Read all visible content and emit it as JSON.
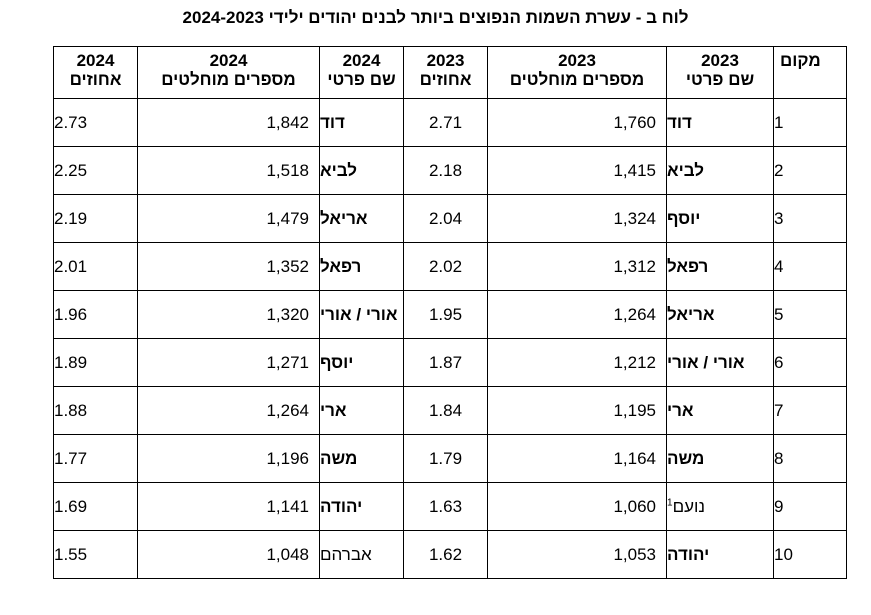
{
  "title": "לוח ב - עשרת השמות הנפוצים ביותר לבנים יהודים ילידי 2024-2023",
  "headers": {
    "rank": "מקום",
    "y2023": "2023",
    "y2024": "2024",
    "name": "שם פרטי",
    "absolute": "מספרים מוחלטים",
    "percent": "אחוזים"
  },
  "rows": [
    {
      "rank": "1",
      "name23": "דוד",
      "abs23": "1,760",
      "pct23": "2.71",
      "name24": "דוד",
      "abs24": "1,842",
      "pct24": "2.73"
    },
    {
      "rank": "2",
      "name23": "לביא",
      "abs23": "1,415",
      "pct23": "2.18",
      "name24": "לביא",
      "abs24": "1,518",
      "pct24": "2.25"
    },
    {
      "rank": "3",
      "name23": "יוסף",
      "abs23": "1,324",
      "pct23": "2.04",
      "name24": "אריאל",
      "abs24": "1,479",
      "pct24": "2.19"
    },
    {
      "rank": "4",
      "name23": "רפאל",
      "abs23": "1,312",
      "pct23": "2.02",
      "name24": "רפאל",
      "abs24": "1,352",
      "pct24": "2.01"
    },
    {
      "rank": "5",
      "name23": "אריאל",
      "abs23": "1,264",
      "pct23": "1.95",
      "name24": "אורי / אורי",
      "abs24": "1,320",
      "pct24": "1.96"
    },
    {
      "rank": "6",
      "name23": "אורי / אורי",
      "abs23": "1,212",
      "pct23": "1.87",
      "name24": "יוסף",
      "abs24": "1,271",
      "pct24": "1.89"
    },
    {
      "rank": "7",
      "name23": "ארי",
      "abs23": "1,195",
      "pct23": "1.84",
      "name24": "ארי",
      "abs24": "1,264",
      "pct24": "1.88"
    },
    {
      "rank": "8",
      "name23": "משה",
      "abs23": "1,164",
      "pct23": "1.79",
      "name24": "משה",
      "abs24": "1,196",
      "pct24": "1.77"
    },
    {
      "rank": "9",
      "name23": "נועם",
      "name23_note": "1",
      "abs23": "1,060",
      "pct23": "1.63",
      "name24": "יהודה",
      "abs24": "1,141",
      "pct24": "1.69"
    },
    {
      "rank": "10",
      "name23": "יהודה",
      "abs23": "1,053",
      "pct23": "1.62",
      "name24": "אברהם",
      "abs24": "1,048",
      "pct24": "1.55"
    }
  ]
}
